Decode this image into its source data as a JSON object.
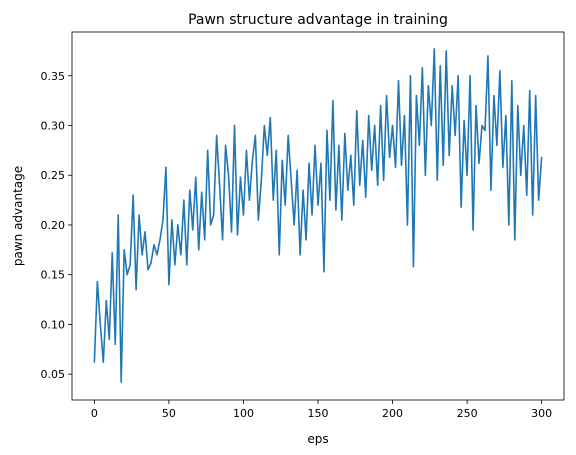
{
  "chart_data": {
    "type": "line",
    "title": "Pawn structure advantage in training",
    "xlabel": "eps",
    "ylabel": "pawn advantage",
    "xlim": [
      -15,
      315
    ],
    "ylim": [
      0.024,
      0.394
    ],
    "xticks": [
      0,
      50,
      100,
      150,
      200,
      250,
      300
    ],
    "yticks": [
      0.05,
      0.1,
      0.15,
      0.2,
      0.25,
      0.3,
      0.35
    ],
    "ytick_labels": [
      "0.05",
      "0.10",
      "0.15",
      "0.20",
      "0.25",
      "0.30",
      "0.35"
    ],
    "grid": false,
    "line_color": "#1f77b4",
    "series": [
      {
        "x": [
          0,
          2,
          4,
          6,
          8,
          10,
          12,
          14,
          16,
          18,
          20,
          22,
          24,
          26,
          28,
          30,
          32,
          34,
          36,
          38,
          40,
          42,
          44,
          46,
          48,
          50,
          52,
          54,
          56,
          58,
          60,
          62,
          64,
          66,
          68,
          70,
          72,
          74,
          76,
          78,
          80,
          82,
          84,
          86,
          88,
          90,
          92,
          94,
          96,
          98,
          100,
          102,
          104,
          106,
          108,
          110,
          112,
          114,
          116,
          118,
          120,
          122,
          124,
          126,
          128,
          130,
          132,
          134,
          136,
          138,
          140,
          142,
          144,
          146,
          148,
          150,
          152,
          154,
          156,
          158,
          160,
          162,
          164,
          166,
          168,
          170,
          172,
          174,
          176,
          178,
          180,
          182,
          184,
          186,
          188,
          190,
          192,
          194,
          196,
          198,
          200,
          202,
          204,
          206,
          208,
          210,
          212,
          214,
          216,
          218,
          220,
          222,
          224,
          226,
          228,
          230,
          232,
          234,
          236,
          238,
          240,
          242,
          244,
          246,
          248,
          250,
          252,
          254,
          256,
          258,
          260,
          262,
          264,
          266,
          268,
          270,
          272,
          274,
          276,
          278,
          280,
          282,
          284,
          286,
          288,
          290,
          292,
          294,
          296,
          298,
          300
        ],
        "values": [
          0.062,
          0.143,
          0.1,
          0.062,
          0.124,
          0.085,
          0.172,
          0.08,
          0.21,
          0.042,
          0.175,
          0.15,
          0.16,
          0.23,
          0.135,
          0.21,
          0.17,
          0.193,
          0.155,
          0.162,
          0.18,
          0.17,
          0.185,
          0.205,
          0.258,
          0.14,
          0.205,
          0.16,
          0.2,
          0.17,
          0.225,
          0.16,
          0.235,
          0.195,
          0.248,
          0.175,
          0.233,
          0.185,
          0.275,
          0.2,
          0.21,
          0.29,
          0.24,
          0.185,
          0.28,
          0.25,
          0.193,
          0.3,
          0.19,
          0.248,
          0.21,
          0.275,
          0.225,
          0.265,
          0.29,
          0.205,
          0.245,
          0.3,
          0.27,
          0.308,
          0.225,
          0.275,
          0.17,
          0.265,
          0.22,
          0.29,
          0.245,
          0.2,
          0.255,
          0.17,
          0.235,
          0.185,
          0.262,
          0.21,
          0.28,
          0.22,
          0.262,
          0.153,
          0.295,
          0.225,
          0.325,
          0.215,
          0.28,
          0.205,
          0.292,
          0.235,
          0.27,
          0.22,
          0.315,
          0.24,
          0.285,
          0.228,
          0.31,
          0.255,
          0.3,
          0.24,
          0.32,
          0.245,
          0.33,
          0.268,
          0.3,
          0.258,
          0.345,
          0.26,
          0.31,
          0.2,
          0.35,
          0.158,
          0.33,
          0.28,
          0.358,
          0.25,
          0.34,
          0.3,
          0.377,
          0.245,
          0.36,
          0.26,
          0.375,
          0.27,
          0.34,
          0.29,
          0.35,
          0.218,
          0.305,
          0.25,
          0.35,
          0.195,
          0.32,
          0.262,
          0.3,
          0.295,
          0.37,
          0.235,
          0.33,
          0.28,
          0.355,
          0.258,
          0.31,
          0.2,
          0.345,
          0.185,
          0.32,
          0.25,
          0.3,
          0.23,
          0.335,
          0.21,
          0.33,
          0.225,
          0.268
        ]
      }
    ]
  }
}
